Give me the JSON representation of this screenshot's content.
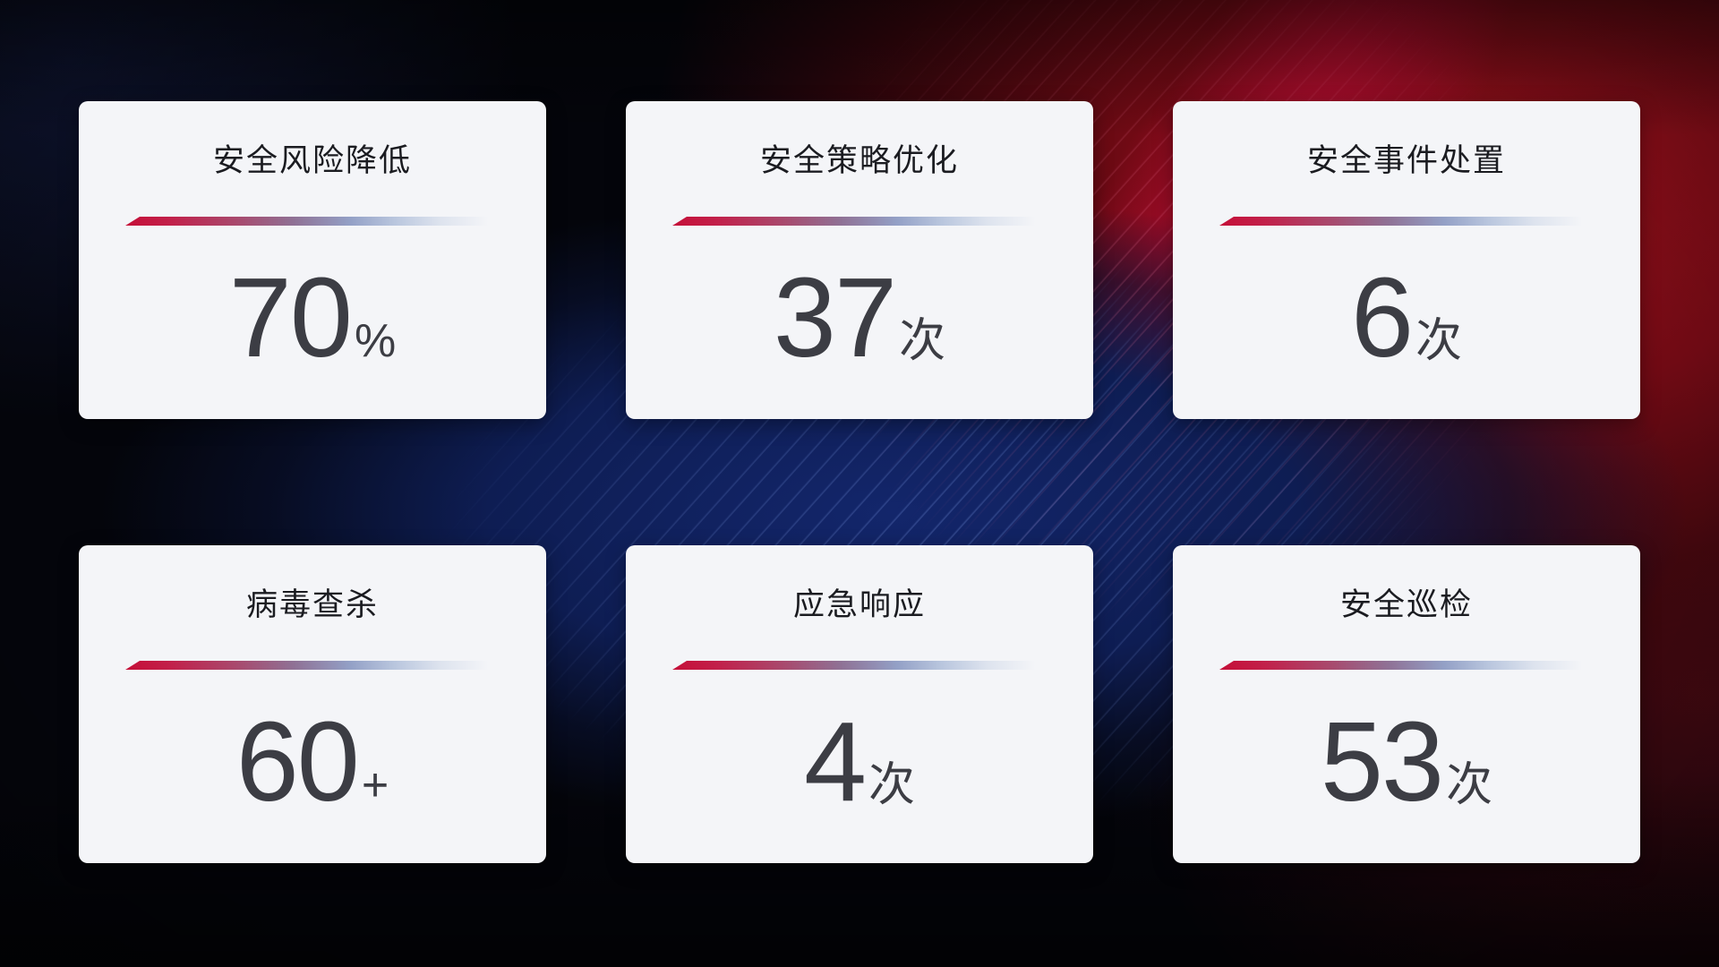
{
  "colors": {
    "page_bg": "#04050b",
    "card_bg": "#f4f5f8",
    "title_color": "#1b1c21",
    "number_color": "#3c3d44",
    "divider_start": "#c50f38",
    "divider_end": "#c9d3e6"
  },
  "cards": [
    {
      "title": "安全风险降低",
      "value": "70",
      "unit": "%"
    },
    {
      "title": "安全策略优化",
      "value": "37",
      "unit": "次"
    },
    {
      "title": "安全事件处置",
      "value": "6",
      "unit": "次"
    },
    {
      "title": "病毒查杀",
      "value": "60",
      "unit": "+"
    },
    {
      "title": "应急响应",
      "value": "4",
      "unit": "次"
    },
    {
      "title": "安全巡检",
      "value": "53",
      "unit": "次"
    }
  ]
}
